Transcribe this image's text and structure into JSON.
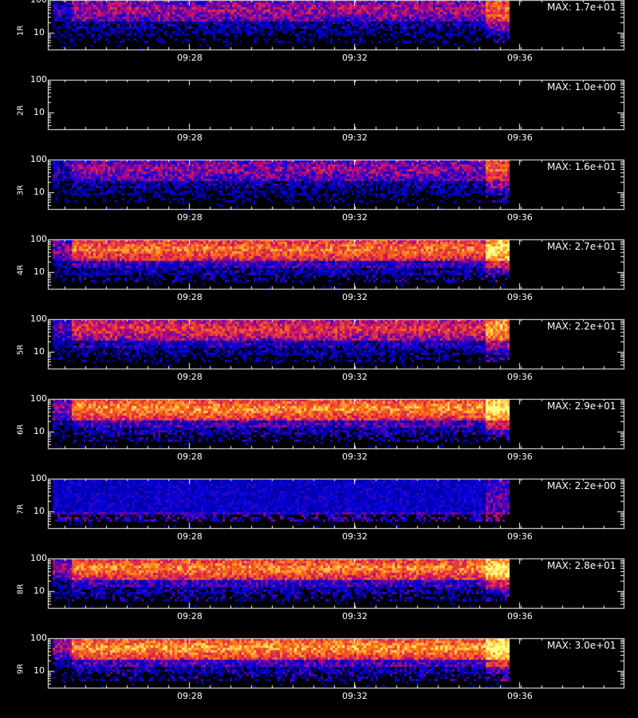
{
  "chart_data": [
    {
      "type": "heatmap",
      "channel": "1R",
      "max_label": "MAX: 1.7e+01",
      "ylim": [
        3,
        100
      ],
      "yticks": [
        "100",
        "10"
      ],
      "xticks": [
        "09:28",
        "09:32",
        "09:36"
      ],
      "max_value": 17.0
    },
    {
      "type": "heatmap",
      "channel": "2R",
      "max_label": "MAX: 1.0e+00",
      "ylim": [
        3,
        100
      ],
      "yticks": [
        "100",
        "10"
      ],
      "xticks": [
        "09:28",
        "09:32",
        "09:36"
      ],
      "max_value": 1.0
    },
    {
      "type": "heatmap",
      "channel": "3R",
      "max_label": "MAX: 1.6e+01",
      "ylim": [
        3,
        100
      ],
      "yticks": [
        "100",
        "10"
      ],
      "xticks": [
        "09:28",
        "09:32",
        "09:36"
      ],
      "max_value": 16.0
    },
    {
      "type": "heatmap",
      "channel": "4R",
      "max_label": "MAX: 2.7e+01",
      "ylim": [
        3,
        100
      ],
      "yticks": [
        "100",
        "10"
      ],
      "xticks": [
        "09:28",
        "09:32",
        "09:36"
      ],
      "max_value": 27.0
    },
    {
      "type": "heatmap",
      "channel": "5R",
      "max_label": "MAX: 2.2e+01",
      "ylim": [
        3,
        100
      ],
      "yticks": [
        "100",
        "10"
      ],
      "xticks": [
        "09:28",
        "09:32",
        "09:36"
      ],
      "max_value": 22.0
    },
    {
      "type": "heatmap",
      "channel": "6R",
      "max_label": "MAX: 2.9e+01",
      "ylim": [
        3,
        100
      ],
      "yticks": [
        "100",
        "10"
      ],
      "xticks": [
        "09:28",
        "09:32",
        "09:36"
      ],
      "max_value": 29.0
    },
    {
      "type": "heatmap",
      "channel": "7R",
      "max_label": "MAX: 2.2e+00",
      "ylim": [
        3,
        100
      ],
      "yticks": [
        "100",
        "10"
      ],
      "xticks": [
        "09:28",
        "09:32",
        "09:36"
      ],
      "max_value": 2.2
    },
    {
      "type": "heatmap",
      "channel": "8R",
      "max_label": "MAX: 2.8e+01",
      "ylim": [
        3,
        100
      ],
      "yticks": [
        "100",
        "10"
      ],
      "xticks": [
        "09:28",
        "09:32",
        "09:36"
      ],
      "max_value": 28.0
    },
    {
      "type": "heatmap",
      "channel": "9R",
      "max_label": "MAX: 3.0e+01",
      "ylim": [
        3,
        100
      ],
      "yticks": [
        "100",
        "10"
      ],
      "xticks": [
        "09:28",
        "09:32",
        "09:36"
      ],
      "max_value": 30.0
    }
  ],
  "colors": {
    "background": "#000000",
    "axes": "#ffffff",
    "low": "#1010c0",
    "mid": "#e03010",
    "high": "#ffff60"
  }
}
